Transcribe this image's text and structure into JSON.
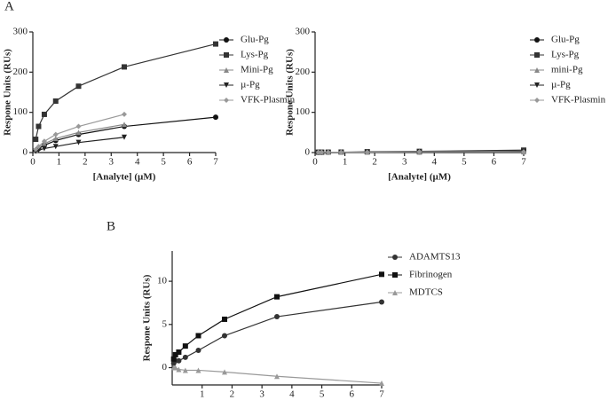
{
  "chart_data": [
    {
      "type": "line",
      "panel_label": "A",
      "x_label": "[Analyte] (µM)",
      "y_label": "Respone Units (RUs)",
      "x": [
        0.11,
        0.22,
        0.44,
        0.875,
        1.75,
        3.5,
        7
      ],
      "series": [
        {
          "name": "Glu-Pg",
          "color": "#111111",
          "marker": "circle",
          "values": [
            5,
            10,
            18,
            30,
            45,
            65,
            88
          ]
        },
        {
          "name": "Lys-Pg",
          "color": "#333333",
          "marker": "square",
          "values": [
            33,
            65,
            95,
            128,
            165,
            213,
            270
          ]
        },
        {
          "name": "Mini-Pg",
          "color": "#888888",
          "marker": "triangle",
          "values": [
            6,
            12,
            22,
            35,
            50,
            70,
            null
          ]
        },
        {
          "name": "µ-Pg",
          "color": "#222222",
          "marker": "triangle-down",
          "values": [
            3,
            6,
            10,
            15,
            25,
            38,
            null
          ]
        },
        {
          "name": "VFK-Plasmin",
          "color": "#999999",
          "marker": "diamond",
          "values": [
            8,
            15,
            28,
            45,
            65,
            95,
            null
          ]
        }
      ],
      "xlim": [
        0,
        7
      ],
      "xticks": [
        0,
        1,
        2,
        3,
        4,
        5,
        6,
        7
      ],
      "ylim": [
        0,
        300
      ],
      "yticks": [
        0,
        100,
        200,
        300
      ],
      "legend": "right"
    },
    {
      "type": "line",
      "x_label": "[Analyte] (µM)",
      "y_label": "Respone Units (RUs)",
      "x": [
        0.11,
        0.22,
        0.44,
        0.875,
        1.75,
        3.5,
        7
      ],
      "series": [
        {
          "name": "Glu-Pg",
          "color": "#111111",
          "marker": "circle",
          "values": [
            1,
            1,
            1,
            1,
            1,
            2,
            3
          ]
        },
        {
          "name": "Lys-Pg",
          "color": "#333333",
          "marker": "square",
          "values": [
            1,
            1,
            1,
            1,
            2,
            3,
            6
          ]
        },
        {
          "name": "mini-Pg",
          "color": "#888888",
          "marker": "triangle",
          "values": [
            0,
            0,
            1,
            1,
            1,
            1,
            2
          ]
        },
        {
          "name": "µ-Pg",
          "color": "#222222",
          "marker": "triangle-down",
          "values": [
            0,
            0,
            0,
            1,
            1,
            1,
            2
          ]
        },
        {
          "name": "VFK-Plasmin",
          "color": "#999999",
          "marker": "diamond",
          "values": [
            1,
            1,
            1,
            1,
            1,
            2,
            2
          ]
        }
      ],
      "xlim": [
        0,
        7
      ],
      "xticks": [
        0,
        1,
        2,
        3,
        4,
        5,
        6,
        7
      ],
      "ylim": [
        0,
        300
      ],
      "yticks": [
        0,
        100,
        200,
        300
      ],
      "legend": "right"
    },
    {
      "type": "line",
      "panel_label": "B",
      "x_label": "[Analyte] (µM)",
      "y_label": "Respone Units (RUs)",
      "x": [
        0.05,
        0.11,
        0.22,
        0.44,
        0.875,
        1.75,
        3.5,
        7
      ],
      "series": [
        {
          "name": "ADAMTS13",
          "color": "#333333",
          "marker": "circle",
          "values": [
            0.5,
            0.8,
            0.8,
            1.2,
            2.0,
            3.7,
            5.9,
            7.6
          ]
        },
        {
          "name": "Fibrinogen",
          "color": "#111111",
          "marker": "square",
          "values": [
            1.0,
            1.5,
            1.8,
            2.5,
            3.7,
            5.6,
            8.2,
            10.8
          ]
        },
        {
          "name": "MDTCS",
          "color": "#999999",
          "marker": "triangle",
          "values": [
            0,
            0,
            -0.2,
            -0.3,
            -0.3,
            -0.5,
            -1.0,
            -1.8
          ]
        }
      ],
      "xlim": [
        0,
        7
      ],
      "xticks": [
        1,
        2,
        3,
        4,
        5,
        6,
        7
      ],
      "ylim": [
        -2,
        13.5
      ],
      "yticks": [
        0,
        5,
        10
      ],
      "legend": "right"
    }
  ]
}
